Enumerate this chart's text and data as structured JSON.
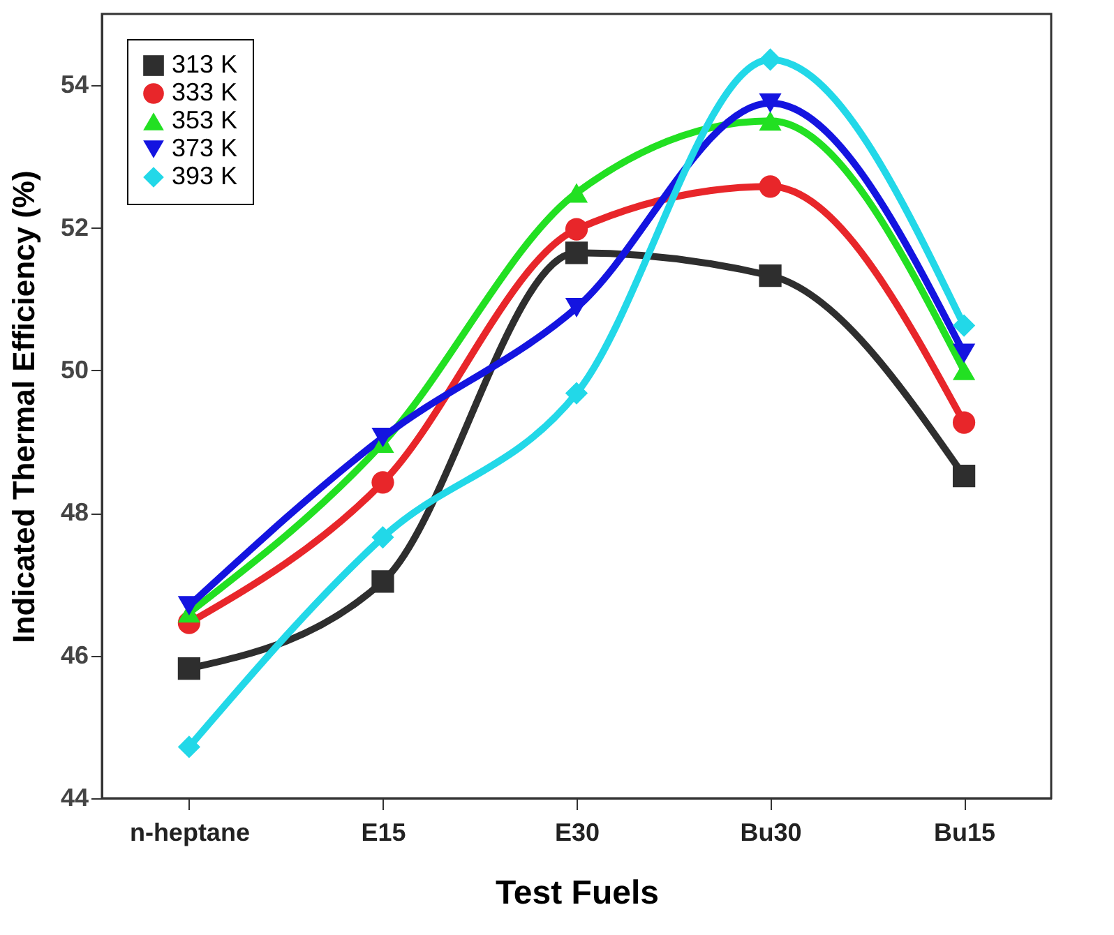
{
  "chart_data": {
    "type": "line",
    "xlabel": "Test Fuels",
    "ylabel": "Indicated Thermal Efficiency (%)",
    "categories": [
      "n-heptane",
      "E15",
      "E30",
      "Bu30",
      "Bu15"
    ],
    "ylim": [
      44,
      55
    ],
    "yticks": [
      44,
      46,
      48,
      50,
      52,
      54
    ],
    "grid": false,
    "legend": "top left",
    "line_style": "solid",
    "series": [
      {
        "name": "313 K",
        "color": "#2e2e2e",
        "marker": "square",
        "values": [
          45.82,
          47.04,
          51.65,
          51.33,
          48.52
        ]
      },
      {
        "name": "333 K",
        "color": "#e8262a",
        "marker": "circle",
        "values": [
          46.46,
          48.43,
          51.98,
          52.58,
          49.27
        ]
      },
      {
        "name": "353 K",
        "color": "#22e022",
        "marker": "triangle",
        "values": [
          46.6,
          48.98,
          52.49,
          53.5,
          50.0
        ]
      },
      {
        "name": "373 K",
        "color": "#1414e0",
        "marker": "triangle-down",
        "values": [
          46.7,
          49.06,
          50.88,
          53.75,
          50.24
        ]
      },
      {
        "name": "393 K",
        "color": "#22d8e8",
        "marker": "diamond",
        "values": [
          44.72,
          47.66,
          49.68,
          54.36,
          50.63
        ]
      }
    ]
  }
}
